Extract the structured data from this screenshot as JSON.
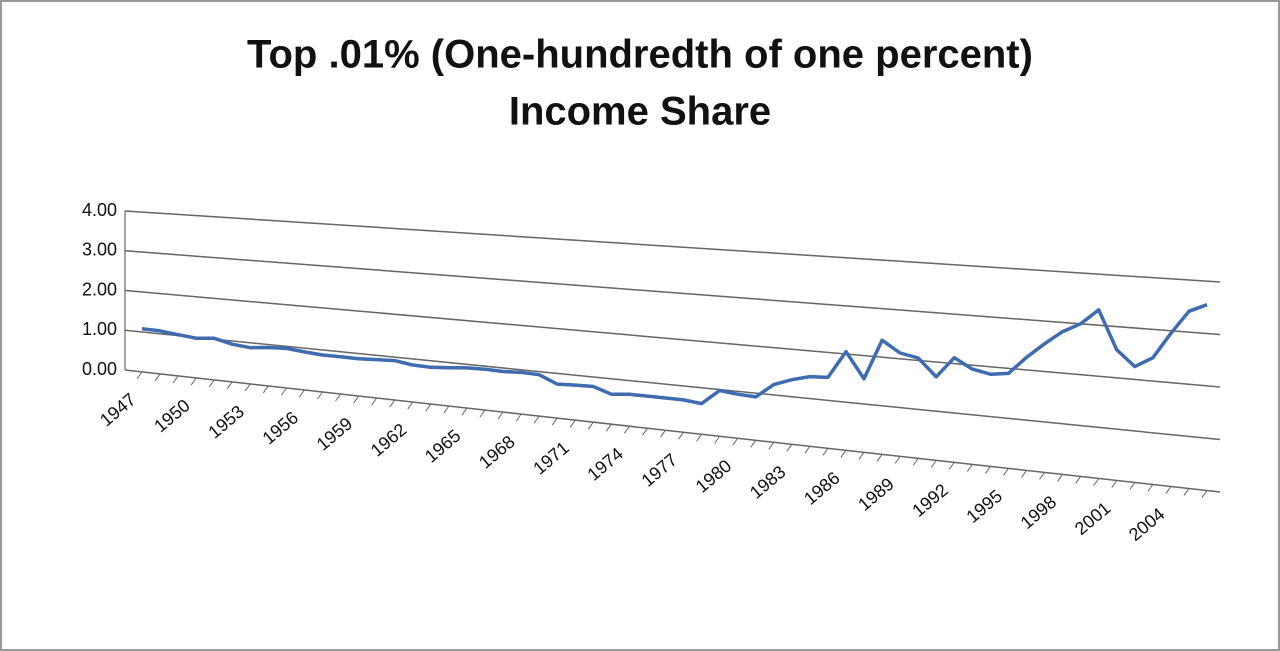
{
  "chart_data": {
    "type": "line",
    "title": [
      "Top .01% (One-hundredth of one percent)",
      "Income Share"
    ],
    "categories": [
      "1947",
      null,
      null,
      "1950",
      null,
      null,
      "1953",
      null,
      null,
      "1956",
      null,
      null,
      "1959",
      null,
      null,
      "1962",
      null,
      null,
      "1965",
      null,
      null,
      "1968",
      null,
      null,
      "1971",
      null,
      null,
      "1974",
      null,
      null,
      "1977",
      null,
      null,
      "1980",
      null,
      null,
      "1983",
      null,
      null,
      "1986",
      null,
      null,
      "1989",
      null,
      null,
      "1992",
      null,
      null,
      "1995",
      null,
      null,
      "1998",
      null,
      null,
      "2001",
      null,
      null,
      "2004",
      null,
      null
    ],
    "values": [
      1.08,
      1.07,
      1.02,
      0.98,
      1.02,
      0.92,
      0.88,
      0.93,
      0.95,
      0.91,
      0.88,
      0.88,
      0.88,
      0.9,
      0.92,
      0.86,
      0.85,
      0.88,
      0.92,
      0.93,
      0.92,
      0.94,
      0.93,
      0.76,
      0.78,
      0.79,
      0.66,
      0.7,
      0.7,
      0.7,
      0.7,
      0.66,
      0.98,
      0.94,
      0.92,
      1.22,
      1.36,
      1.46,
      1.48,
      2.05,
      1.52,
      2.35,
      2.12,
      2.05,
      1.7,
      2.12,
      1.92,
      1.85,
      1.9,
      2.25,
      2.55,
      2.82,
      3.0,
      3.3,
      2.55,
      2.25,
      2.45,
      2.95,
      3.4,
      3.55
    ],
    "color": "#3f6bb0",
    "ylim": [
      0,
      4
    ],
    "yticks": [
      {
        "value": 0,
        "label": "0.00"
      },
      {
        "value": 1,
        "label": "1.00"
      },
      {
        "value": 2,
        "label": "2.00"
      },
      {
        "value": 3,
        "label": "3.00"
      },
      {
        "value": 4,
        "label": "4.00"
      }
    ],
    "grid": true
  }
}
